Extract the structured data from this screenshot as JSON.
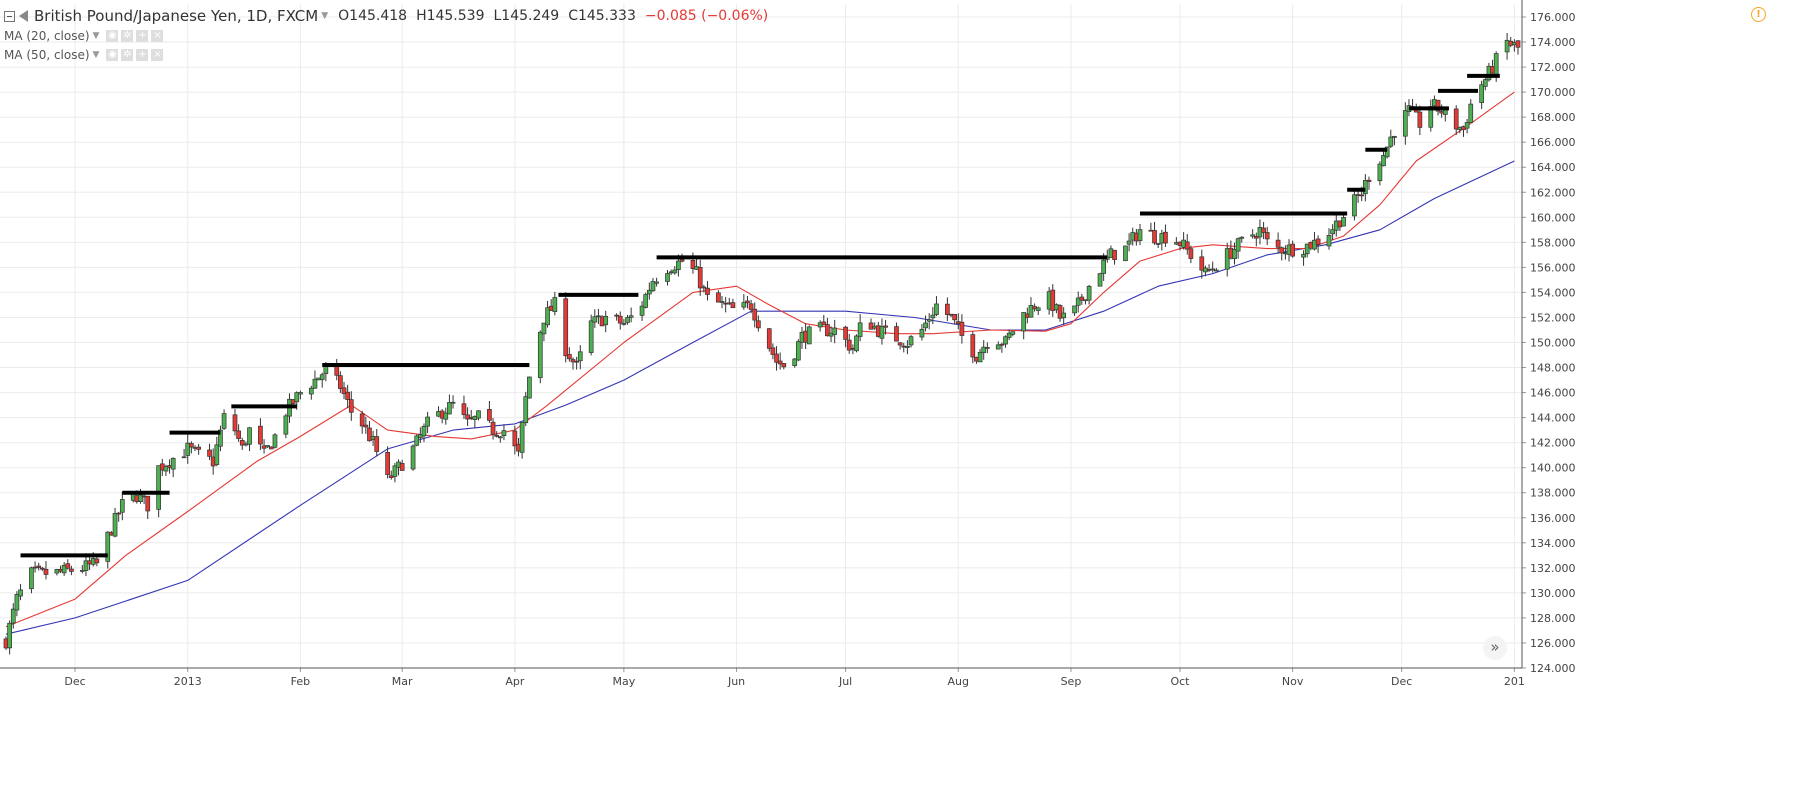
{
  "header": {
    "symbol": "British Pound/Japanese Yen, 1D, FXCM",
    "open": "O145.418",
    "high": "H145.539",
    "low": "L145.249",
    "close": "C145.333",
    "change": "−0.085 (−0.06%)"
  },
  "indicators": [
    {
      "label": "MA (20, close)",
      "color": "#e53935"
    },
    {
      "label": "MA (50, close)",
      "color": "#3535b5"
    }
  ],
  "icons": {
    "collapse": "collapse-icon",
    "flag": "flag-icon",
    "warning": "warning-icon",
    "scroll": "scroll-to-end-icon"
  },
  "colors": {
    "up_candle": "#4caf50",
    "down_candle": "#e53935",
    "ma20": "#e53935",
    "ma50": "#3535b5",
    "levels": "#000000",
    "grid": "#ebebeb"
  },
  "chart_data": {
    "type": "candlestick",
    "title": "British Pound/Japanese Yen, 1D, FXCM",
    "ylim": [
      124,
      176
    ],
    "y_ticks": [
      "124.000",
      "126.000",
      "128.000",
      "130.000",
      "132.000",
      "134.000",
      "136.000",
      "138.000",
      "140.000",
      "142.000",
      "144.000",
      "146.000",
      "148.000",
      "150.000",
      "152.000",
      "154.000",
      "156.000",
      "158.000",
      "160.000",
      "162.000",
      "164.000",
      "166.000",
      "168.000",
      "170.000",
      "172.000",
      "174.000",
      "176.000"
    ],
    "x_ticks": [
      {
        "label": "Dec",
        "date": "2012-12-01"
      },
      {
        "label": "2013",
        "date": "2013-01-01"
      },
      {
        "label": "Feb",
        "date": "2013-02-01"
      },
      {
        "label": "Mar",
        "date": "2013-03-01"
      },
      {
        "label": "Apr",
        "date": "2013-04-01"
      },
      {
        "label": "May",
        "date": "2013-05-01"
      },
      {
        "label": "Jun",
        "date": "2013-06-01"
      },
      {
        "label": "Jul",
        "date": "2013-07-01"
      },
      {
        "label": "Aug",
        "date": "2013-08-01"
      },
      {
        "label": "Sep",
        "date": "2013-09-01"
      },
      {
        "label": "Oct",
        "date": "2013-10-01"
      },
      {
        "label": "Nov",
        "date": "2013-11-01"
      },
      {
        "label": "Dec",
        "date": "2013-12-01"
      },
      {
        "label": "201",
        "date": "2014-01-01"
      }
    ],
    "price_path": [
      [
        "2012-11-12",
        126.2
      ],
      [
        "2012-11-15",
        129.5
      ],
      [
        "2012-11-19",
        131.5
      ],
      [
        "2012-11-26",
        131.6
      ],
      [
        "2012-12-03",
        132.0
      ],
      [
        "2012-12-07",
        132.3
      ],
      [
        "2012-12-10",
        134.5
      ],
      [
        "2012-12-14",
        137.0
      ],
      [
        "2012-12-18",
        137.8
      ],
      [
        "2012-12-21",
        137.0
      ],
      [
        "2012-12-24",
        140.0
      ],
      [
        "2013-01-01",
        141.5
      ],
      [
        "2013-01-04",
        141.0
      ],
      [
        "2013-01-08",
        140.5
      ],
      [
        "2013-01-11",
        144.0
      ],
      [
        "2013-01-14",
        143.0
      ],
      [
        "2013-01-16",
        141.5
      ],
      [
        "2013-01-18",
        143.0
      ],
      [
        "2013-01-22",
        141.0
      ],
      [
        "2013-01-25",
        142.5
      ],
      [
        "2013-01-28",
        144.5
      ],
      [
        "2013-02-01",
        146.0
      ],
      [
        "2013-02-05",
        147.0
      ],
      [
        "2013-02-08",
        147.8
      ],
      [
        "2013-02-12",
        146.5
      ],
      [
        "2013-02-15",
        144.5
      ],
      [
        "2013-02-18",
        143.5
      ],
      [
        "2013-02-21",
        142.0
      ],
      [
        "2013-02-25",
        139.0
      ],
      [
        "2013-02-28",
        140.0
      ],
      [
        "2013-03-04",
        141.5
      ],
      [
        "2013-03-08",
        143.5
      ],
      [
        "2013-03-12",
        144.5
      ],
      [
        "2013-03-15",
        145.0
      ],
      [
        "2013-03-19",
        143.5
      ],
      [
        "2013-03-22",
        144.0
      ],
      [
        "2013-03-26",
        143.0
      ],
      [
        "2013-03-29",
        143.0
      ],
      [
        "2013-04-02",
        141.0
      ],
      [
        "2013-04-04",
        145.5
      ],
      [
        "2013-04-06",
        149.0
      ],
      [
        "2013-04-09",
        152.0
      ],
      [
        "2013-04-12",
        153.0
      ],
      [
        "2013-04-15",
        149.5
      ],
      [
        "2013-04-18",
        148.0
      ],
      [
        "2013-04-22",
        151.5
      ],
      [
        "2013-04-26",
        152.0
      ],
      [
        "2013-05-01",
        151.5
      ],
      [
        "2013-05-05",
        152.5
      ],
      [
        "2013-05-09",
        155.0
      ],
      [
        "2013-05-13",
        156.0
      ],
      [
        "2013-05-17",
        156.5
      ],
      [
        "2013-05-21",
        155.5
      ],
      [
        "2013-05-24",
        153.5
      ],
      [
        "2013-05-28",
        153.0
      ],
      [
        "2013-06-01",
        152.5
      ],
      [
        "2013-06-05",
        153.0
      ],
      [
        "2013-06-08",
        151.0
      ],
      [
        "2013-06-12",
        148.5
      ],
      [
        "2013-06-15",
        148.0
      ],
      [
        "2013-06-19",
        150.5
      ],
      [
        "2013-06-24",
        151.0
      ],
      [
        "2013-06-28",
        151.0
      ],
      [
        "2013-07-03",
        149.5
      ],
      [
        "2013-07-06",
        152.0
      ],
      [
        "2013-07-10",
        151.0
      ],
      [
        "2013-07-14",
        150.5
      ],
      [
        "2013-07-18",
        150.0
      ],
      [
        "2013-07-22",
        151.0
      ],
      [
        "2013-07-26",
        153.0
      ],
      [
        "2013-07-30",
        152.0
      ],
      [
        "2013-08-02",
        150.5
      ],
      [
        "2013-08-06",
        149.0
      ],
      [
        "2013-08-10",
        150.5
      ],
      [
        "2013-08-14",
        150.0
      ],
      [
        "2013-08-18",
        152.0
      ],
      [
        "2013-08-22",
        153.0
      ],
      [
        "2013-08-26",
        153.5
      ],
      [
        "2013-08-29",
        152.0
      ],
      [
        "2013-09-01",
        152.0
      ],
      [
        "2013-09-05",
        154.0
      ],
      [
        "2013-09-08",
        155.5
      ],
      [
        "2013-09-12",
        157.0
      ],
      [
        "2013-09-16",
        157.5
      ],
      [
        "2013-09-20",
        159.0
      ],
      [
        "2013-09-24",
        158.5
      ],
      [
        "2013-09-28",
        158.5
      ],
      [
        "2013-10-01",
        158.0
      ],
      [
        "2013-10-04",
        157.0
      ],
      [
        "2013-10-08",
        155.5
      ],
      [
        "2013-10-12",
        156.5
      ],
      [
        "2013-10-16",
        157.5
      ],
      [
        "2013-10-20",
        158.5
      ],
      [
        "2013-10-23",
        159.0
      ],
      [
        "2013-10-26",
        157.5
      ],
      [
        "2013-10-30",
        157.5
      ],
      [
        "2013-11-03",
        157.5
      ],
      [
        "2013-11-07",
        158.0
      ],
      [
        "2013-11-10",
        158.5
      ],
      [
        "2013-11-13",
        159.5
      ],
      [
        "2013-11-16",
        160.5
      ],
      [
        "2013-11-20",
        162.0
      ],
      [
        "2013-11-23",
        164.0
      ],
      [
        "2013-11-26",
        165.0
      ],
      [
        "2013-11-29",
        167.0
      ],
      [
        "2013-12-03",
        168.5
      ],
      [
        "2013-12-06",
        167.5
      ],
      [
        "2013-12-09",
        169.0
      ],
      [
        "2013-12-12",
        168.5
      ],
      [
        "2013-12-15",
        167.5
      ],
      [
        "2013-12-18",
        167.0
      ],
      [
        "2013-12-21",
        170.0
      ],
      [
        "2013-12-24",
        171.0
      ],
      [
        "2013-12-27",
        172.5
      ],
      [
        "2013-12-30",
        174.0
      ],
      [
        "2014-01-02",
        173.5
      ]
    ],
    "ma20": [
      [
        "2012-11-12",
        127.3
      ],
      [
        "2012-12-01",
        129.5
      ],
      [
        "2012-12-15",
        133.0
      ],
      [
        "2013-01-01",
        136.5
      ],
      [
        "2013-01-20",
        140.5
      ],
      [
        "2013-02-01",
        142.5
      ],
      [
        "2013-02-15",
        145.0
      ],
      [
        "2013-02-25",
        143.0
      ],
      [
        "2013-03-10",
        142.5
      ],
      [
        "2013-03-20",
        142.3
      ],
      [
        "2013-04-01",
        143.0
      ],
      [
        "2013-04-10",
        145.0
      ],
      [
        "2013-05-01",
        150.0
      ],
      [
        "2013-05-20",
        154.0
      ],
      [
        "2013-06-01",
        154.5
      ],
      [
        "2013-06-10",
        153.0
      ],
      [
        "2013-06-20",
        151.5
      ],
      [
        "2013-07-01",
        151.0
      ],
      [
        "2013-07-15",
        150.7
      ],
      [
        "2013-07-25",
        150.7
      ],
      [
        "2013-08-10",
        151.0
      ],
      [
        "2013-08-25",
        150.9
      ],
      [
        "2013-09-01",
        151.5
      ],
      [
        "2013-09-10",
        154.0
      ],
      [
        "2013-09-20",
        156.5
      ],
      [
        "2013-10-01",
        157.5
      ],
      [
        "2013-10-10",
        157.8
      ],
      [
        "2013-10-25",
        157.5
      ],
      [
        "2013-11-05",
        157.5
      ],
      [
        "2013-11-15",
        158.5
      ],
      [
        "2013-11-25",
        161.0
      ],
      [
        "2013-12-05",
        164.5
      ],
      [
        "2013-12-20",
        167.5
      ],
      [
        "2014-01-01",
        170.0
      ]
    ],
    "ma50": [
      [
        "2012-11-12",
        126.7
      ],
      [
        "2012-12-01",
        128.0
      ],
      [
        "2013-01-01",
        131.0
      ],
      [
        "2013-02-01",
        137.0
      ],
      [
        "2013-02-25",
        141.5
      ],
      [
        "2013-03-15",
        143.0
      ],
      [
        "2013-04-01",
        143.5
      ],
      [
        "2013-04-15",
        145.0
      ],
      [
        "2013-05-01",
        147.0
      ],
      [
        "2013-05-20",
        150.0
      ],
      [
        "2013-06-05",
        152.5
      ],
      [
        "2013-06-15",
        152.5
      ],
      [
        "2013-07-01",
        152.5
      ],
      [
        "2013-07-20",
        152.0
      ],
      [
        "2013-08-10",
        151.0
      ],
      [
        "2013-08-25",
        151.0
      ],
      [
        "2013-09-10",
        152.5
      ],
      [
        "2013-09-25",
        154.5
      ],
      [
        "2013-10-10",
        155.5
      ],
      [
        "2013-10-25",
        157.0
      ],
      [
        "2013-11-10",
        157.8
      ],
      [
        "2013-11-25",
        159.0
      ],
      [
        "2013-12-10",
        161.5
      ],
      [
        "2014-01-01",
        164.5
      ]
    ],
    "resistance_levels": [
      {
        "from": "2012-11-16",
        "to": "2012-12-10",
        "y": 133.0
      },
      {
        "from": "2012-12-14",
        "to": "2012-12-27",
        "y": 138.0
      },
      {
        "from": "2012-12-27",
        "to": "2013-01-10",
        "y": 142.8
      },
      {
        "from": "2013-01-13",
        "to": "2013-01-31",
        "y": 144.9
      },
      {
        "from": "2013-02-07",
        "to": "2013-04-05",
        "y": 148.2
      },
      {
        "from": "2013-04-13",
        "to": "2013-05-05",
        "y": 153.8
      },
      {
        "from": "2013-05-10",
        "to": "2013-09-11",
        "y": 156.8
      },
      {
        "from": "2013-09-20",
        "to": "2013-11-16",
        "y": 160.3
      },
      {
        "from": "2013-11-16",
        "to": "2013-11-21",
        "y": 162.2
      },
      {
        "from": "2013-11-21",
        "to": "2013-11-27",
        "y": 165.4
      },
      {
        "from": "2013-12-03",
        "to": "2013-12-14",
        "y": 168.7
      },
      {
        "from": "2013-12-11",
        "to": "2013-12-22",
        "y": 170.1
      },
      {
        "from": "2013-12-19",
        "to": "2013-12-28",
        "y": 171.3
      }
    ]
  }
}
